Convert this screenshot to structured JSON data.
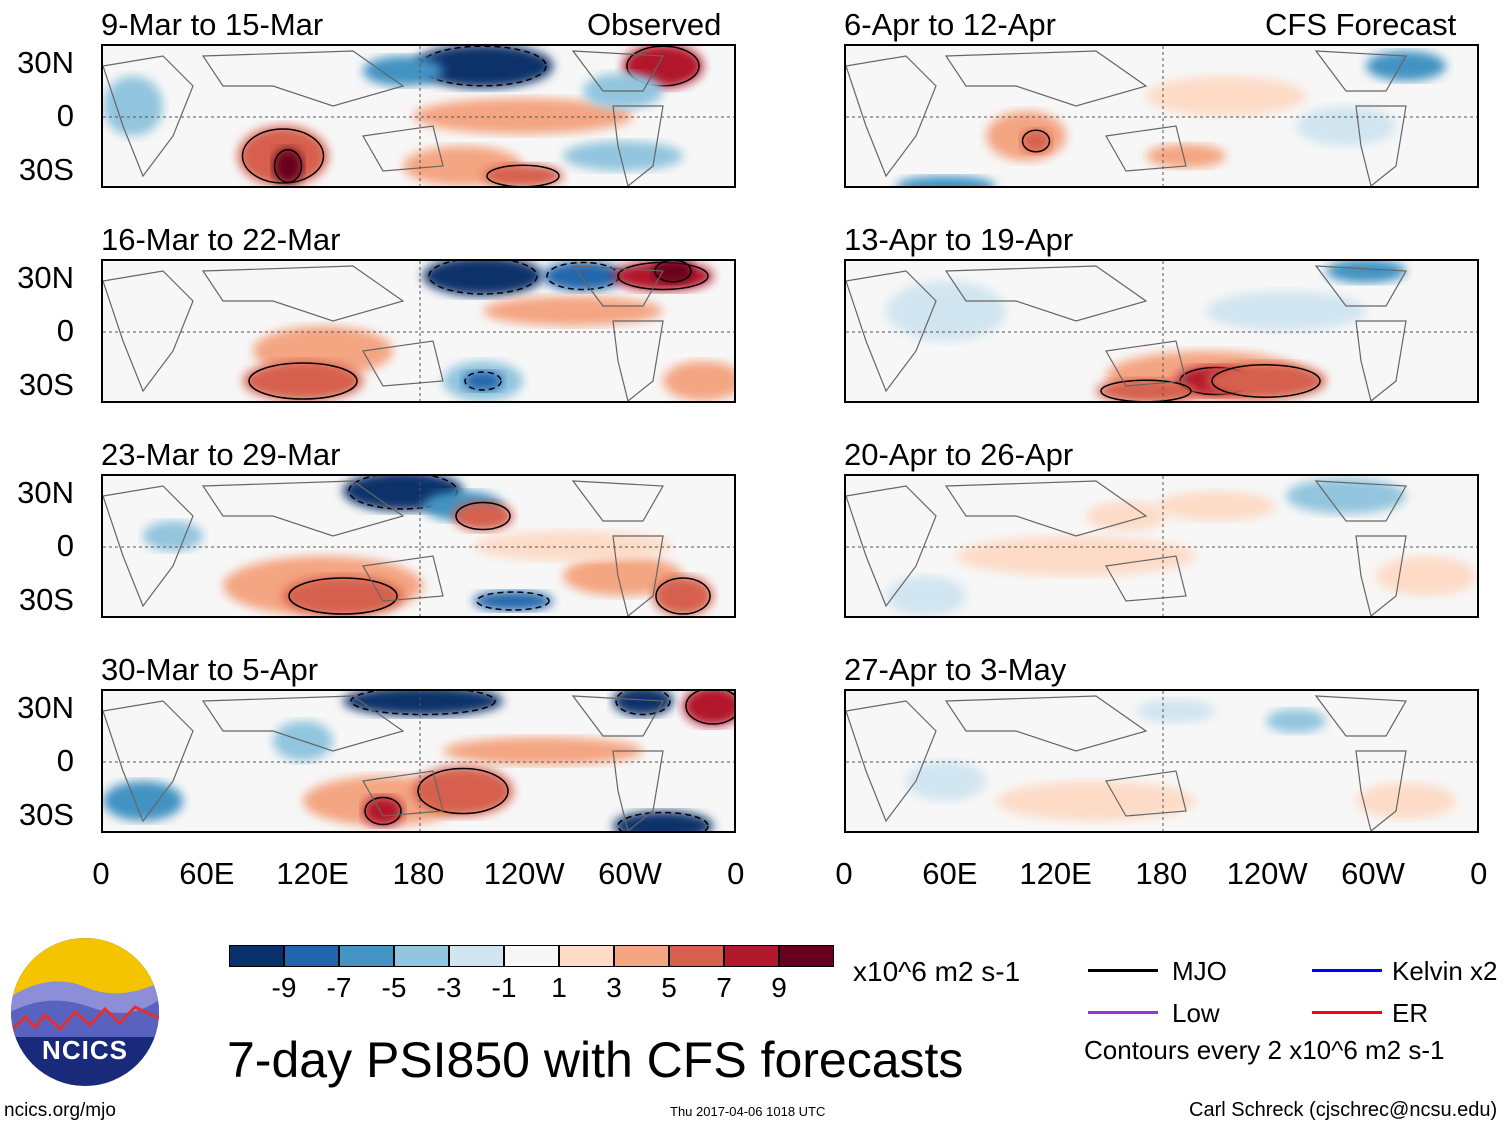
{
  "header": {
    "observed_label": "Observed",
    "forecast_label": "CFS Forecast"
  },
  "observed_panels": [
    {
      "title": "9-Mar to 15-Mar"
    },
    {
      "title": "16-Mar to 22-Mar"
    },
    {
      "title": "23-Mar to 29-Mar"
    },
    {
      "title": "30-Mar to 5-Apr"
    }
  ],
  "forecast_panels": [
    {
      "title": "6-Apr to 12-Apr"
    },
    {
      "title": "13-Apr to 19-Apr"
    },
    {
      "title": "20-Apr to 26-Apr"
    },
    {
      "title": "27-Apr to 3-May"
    }
  ],
  "lat_labels": [
    "30N",
    "0",
    "30S"
  ],
  "lon_labels": [
    "0",
    "60E",
    "120E",
    "180",
    "120W",
    "60W",
    "0"
  ],
  "colorbar": {
    "colors": [
      "#08306b",
      "#2166ac",
      "#4393c3",
      "#92c5de",
      "#d1e5f0",
      "#f7f7f7",
      "#fddbc7",
      "#f4a582",
      "#d6604d",
      "#b2182b",
      "#67001f"
    ],
    "ticks": [
      "-9",
      "-7",
      "-5",
      "-3",
      "-1",
      "1",
      "3",
      "5",
      "7",
      "9"
    ],
    "units": "x10^6 m2 s-1"
  },
  "legend": {
    "items": [
      {
        "label": "MJO",
        "color": "#000000"
      },
      {
        "label": "Kelvin x2",
        "color": "#0000ff"
      },
      {
        "label": "Low",
        "color": "#9933cc"
      },
      {
        "label": "ER",
        "color": "#ff0000"
      }
    ],
    "contour_note": "Contours every 2 x10^6 m2 s-1"
  },
  "main_title": "7-day PSI850 with CFS forecasts",
  "logo": {
    "text": "NCICS"
  },
  "footer": {
    "url": "ncics.org/mjo",
    "timestamp": "Thu 2017-04-06 1018 UTC",
    "author": "Carl Schreck (cjschrec@ncsu.edu)"
  }
}
